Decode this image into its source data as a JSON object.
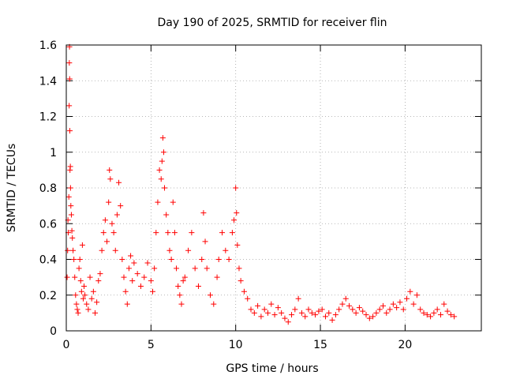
{
  "chart_data": {
    "type": "scatter",
    "title": "Day 190 of 2025, SRMTID for receiver flin",
    "xlabel": "GPS time / hours",
    "ylabel": "SRMTID / TECUs",
    "xlim": [
      0,
      24.5
    ],
    "ylim": [
      0,
      1.6
    ],
    "x_ticks": [
      0,
      5,
      10,
      15,
      20
    ],
    "x_tick_labels": [
      "0",
      "5",
      "10",
      "15",
      "20"
    ],
    "y_ticks": [
      0,
      0.2,
      0.4,
      0.6,
      0.8,
      1.0,
      1.2,
      1.4,
      1.6
    ],
    "y_tick_labels": [
      "0",
      "0.2",
      "0.4",
      "0.6",
      "0.8",
      "1",
      "1.2",
      "1.4",
      "1.6"
    ],
    "grid": true,
    "marker": "+",
    "marker_color": "#ff0000",
    "series": [
      {
        "name": "SRMTID",
        "points": [
          [
            0.05,
            0.3
          ],
          [
            0.08,
            0.45
          ],
          [
            0.1,
            0.62
          ],
          [
            0.12,
            0.55
          ],
          [
            0.15,
            0.75
          ],
          [
            0.17,
            1.26
          ],
          [
            0.18,
            1.5
          ],
          [
            0.19,
            1.59
          ],
          [
            0.2,
            1.41
          ],
          [
            0.21,
            1.12
          ],
          [
            0.22,
            0.9
          ],
          [
            0.24,
            0.92
          ],
          [
            0.25,
            0.8
          ],
          [
            0.27,
            0.7
          ],
          [
            0.3,
            0.65
          ],
          [
            0.33,
            0.56
          ],
          [
            0.36,
            0.52
          ],
          [
            0.4,
            0.45
          ],
          [
            0.45,
            0.4
          ],
          [
            0.5,
            0.3
          ],
          [
            0.55,
            0.2
          ],
          [
            0.6,
            0.15
          ],
          [
            0.65,
            0.12
          ],
          [
            0.7,
            0.1
          ],
          [
            0.75,
            0.35
          ],
          [
            0.8,
            0.4
          ],
          [
            0.85,
            0.28
          ],
          [
            0.9,
            0.22
          ],
          [
            0.95,
            0.48
          ],
          [
            1.0,
            0.18
          ],
          [
            1.05,
            0.25
          ],
          [
            1.1,
            0.2
          ],
          [
            1.2,
            0.15
          ],
          [
            1.3,
            0.12
          ],
          [
            1.4,
            0.3
          ],
          [
            1.5,
            0.18
          ],
          [
            1.6,
            0.22
          ],
          [
            1.7,
            0.1
          ],
          [
            1.8,
            0.16
          ],
          [
            1.9,
            0.28
          ],
          [
            2.0,
            0.32
          ],
          [
            2.1,
            0.45
          ],
          [
            2.2,
            0.55
          ],
          [
            2.3,
            0.62
          ],
          [
            2.4,
            0.5
          ],
          [
            2.5,
            0.72
          ],
          [
            2.55,
            0.9
          ],
          [
            2.6,
            0.85
          ],
          [
            2.7,
            0.6
          ],
          [
            2.8,
            0.55
          ],
          [
            2.9,
            0.45
          ],
          [
            3.0,
            0.65
          ],
          [
            3.1,
            0.83
          ],
          [
            3.2,
            0.7
          ],
          [
            3.3,
            0.4
          ],
          [
            3.4,
            0.3
          ],
          [
            3.5,
            0.22
          ],
          [
            3.6,
            0.15
          ],
          [
            3.7,
            0.35
          ],
          [
            3.8,
            0.42
          ],
          [
            3.9,
            0.28
          ],
          [
            4.0,
            0.38
          ],
          [
            4.2,
            0.32
          ],
          [
            4.4,
            0.25
          ],
          [
            4.6,
            0.3
          ],
          [
            4.8,
            0.38
          ],
          [
            5.0,
            0.28
          ],
          [
            5.1,
            0.22
          ],
          [
            5.2,
            0.35
          ],
          [
            5.3,
            0.55
          ],
          [
            5.4,
            0.72
          ],
          [
            5.5,
            0.9
          ],
          [
            5.6,
            0.85
          ],
          [
            5.65,
            0.95
          ],
          [
            5.7,
            1.08
          ],
          [
            5.75,
            1.0
          ],
          [
            5.8,
            0.8
          ],
          [
            5.9,
            0.65
          ],
          [
            6.0,
            0.55
          ],
          [
            6.1,
            0.45
          ],
          [
            6.2,
            0.4
          ],
          [
            6.3,
            0.72
          ],
          [
            6.4,
            0.55
          ],
          [
            6.5,
            0.35
          ],
          [
            6.6,
            0.25
          ],
          [
            6.7,
            0.2
          ],
          [
            6.8,
            0.15
          ],
          [
            6.9,
            0.28
          ],
          [
            7.0,
            0.3
          ],
          [
            7.2,
            0.45
          ],
          [
            7.4,
            0.55
          ],
          [
            7.6,
            0.35
          ],
          [
            7.8,
            0.25
          ],
          [
            8.0,
            0.4
          ],
          [
            8.1,
            0.66
          ],
          [
            8.2,
            0.5
          ],
          [
            8.3,
            0.35
          ],
          [
            8.5,
            0.2
          ],
          [
            8.7,
            0.15
          ],
          [
            8.9,
            0.3
          ],
          [
            9.0,
            0.4
          ],
          [
            9.2,
            0.55
          ],
          [
            9.4,
            0.45
          ],
          [
            9.6,
            0.4
          ],
          [
            9.8,
            0.55
          ],
          [
            9.9,
            0.62
          ],
          [
            10.0,
            0.8
          ],
          [
            10.05,
            0.66
          ],
          [
            10.1,
            0.48
          ],
          [
            10.2,
            0.35
          ],
          [
            10.3,
            0.28
          ],
          [
            10.5,
            0.22
          ],
          [
            10.7,
            0.18
          ],
          [
            10.9,
            0.12
          ],
          [
            11.1,
            0.1
          ],
          [
            11.3,
            0.14
          ],
          [
            11.5,
            0.08
          ],
          [
            11.7,
            0.12
          ],
          [
            11.9,
            0.1
          ],
          [
            12.1,
            0.15
          ],
          [
            12.3,
            0.09
          ],
          [
            12.5,
            0.13
          ],
          [
            12.7,
            0.1
          ],
          [
            12.9,
            0.07
          ],
          [
            13.1,
            0.05
          ],
          [
            13.3,
            0.09
          ],
          [
            13.5,
            0.12
          ],
          [
            13.7,
            0.18
          ],
          [
            13.9,
            0.1
          ],
          [
            14.1,
            0.08
          ],
          [
            14.3,
            0.12
          ],
          [
            14.5,
            0.1
          ],
          [
            14.7,
            0.09
          ],
          [
            14.9,
            0.11
          ],
          [
            15.1,
            0.12
          ],
          [
            15.3,
            0.08
          ],
          [
            15.5,
            0.1
          ],
          [
            15.7,
            0.06
          ],
          [
            15.9,
            0.09
          ],
          [
            16.1,
            0.12
          ],
          [
            16.3,
            0.15
          ],
          [
            16.5,
            0.18
          ],
          [
            16.7,
            0.14
          ],
          [
            16.9,
            0.12
          ],
          [
            17.1,
            0.1
          ],
          [
            17.3,
            0.13
          ],
          [
            17.5,
            0.11
          ],
          [
            17.7,
            0.09
          ],
          [
            17.9,
            0.07
          ],
          [
            18.1,
            0.08
          ],
          [
            18.3,
            0.1
          ],
          [
            18.5,
            0.12
          ],
          [
            18.7,
            0.14
          ],
          [
            18.9,
            0.1
          ],
          [
            19.1,
            0.12
          ],
          [
            19.3,
            0.15
          ],
          [
            19.5,
            0.13
          ],
          [
            19.7,
            0.16
          ],
          [
            19.9,
            0.12
          ],
          [
            20.1,
            0.18
          ],
          [
            20.3,
            0.22
          ],
          [
            20.5,
            0.15
          ],
          [
            20.7,
            0.2
          ],
          [
            20.9,
            0.12
          ],
          [
            21.1,
            0.1
          ],
          [
            21.3,
            0.09
          ],
          [
            21.5,
            0.08
          ],
          [
            21.7,
            0.1
          ],
          [
            21.9,
            0.12
          ],
          [
            22.1,
            0.09
          ],
          [
            22.3,
            0.15
          ],
          [
            22.5,
            0.11
          ],
          [
            22.7,
            0.09
          ],
          [
            22.9,
            0.08
          ]
        ]
      }
    ]
  }
}
